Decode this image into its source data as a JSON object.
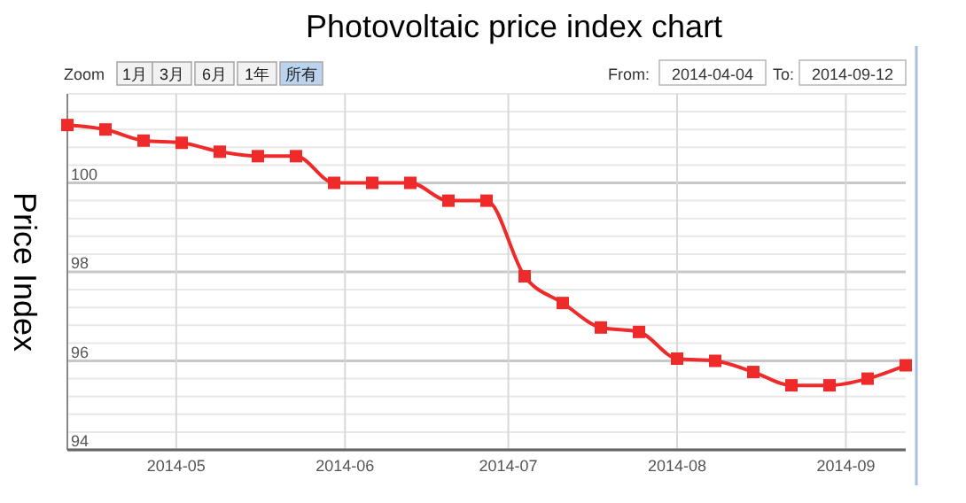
{
  "chart_data": {
    "type": "line",
    "title": "Photovoltaic price index chart",
    "ylabel": "Price Index",
    "x": [
      "2014-04-11",
      "2014-04-18",
      "2014-04-25",
      "2014-05-02",
      "2014-05-09",
      "2014-05-16",
      "2014-05-23",
      "2014-05-30",
      "2014-06-06",
      "2014-06-13",
      "2014-06-20",
      "2014-06-27",
      "2014-07-04",
      "2014-07-11",
      "2014-07-18",
      "2014-07-25",
      "2014-08-01",
      "2014-08-08",
      "2014-08-15",
      "2014-08-22",
      "2014-08-29",
      "2014-09-05",
      "2014-09-12"
    ],
    "series": [
      {
        "color": "#ee2a2a",
        "values": [
          101.3,
          101.2,
          100.95,
          100.9,
          100.7,
          100.6,
          100.6,
          100,
          100,
          100,
          99.6,
          99.6,
          97.9,
          97.3,
          96.75,
          96.65,
          96.05,
          96,
          95.75,
          95.45,
          95.45,
          95.6,
          95.9
        ]
      }
    ],
    "xlim": [
      "2014-04-11",
      "2014-09-12"
    ],
    "xticks": [
      {
        "value": "2014-05-01",
        "label": "2014-05"
      },
      {
        "value": "2014-06-01",
        "label": "2014-06"
      },
      {
        "value": "2014-07-01",
        "label": "2014-07"
      },
      {
        "value": "2014-08-01",
        "label": "2014-08"
      },
      {
        "value": "2014-09-01",
        "label": "2014-09"
      }
    ],
    "ylim": [
      94,
      102
    ],
    "yticks": [
      94,
      {
        "value": 94.4,
        "label": null
      },
      {
        "value": 94.8,
        "label": null
      },
      {
        "value": 95.2,
        "label": null
      },
      {
        "value": 95.6,
        "label": null
      },
      96,
      {
        "value": 96.4,
        "label": null
      },
      {
        "value": 96.8,
        "label": null
      },
      {
        "value": 97.2,
        "label": null
      },
      {
        "value": 97.6,
        "label": null
      },
      98,
      {
        "value": 98.4,
        "label": null
      },
      {
        "value": 98.8,
        "label": null
      },
      {
        "value": 99.2,
        "label": null
      },
      {
        "value": 99.6,
        "label": null
      },
      100,
      {
        "value": 100.4,
        "label": null
      },
      {
        "value": 100.8,
        "label": null
      },
      {
        "value": 101.2,
        "label": null
      },
      {
        "value": 101.6,
        "label": null
      },
      {
        "value": 102,
        "label": null
      }
    ],
    "grid": true,
    "marker": "square",
    "line_style": "solid",
    "annotations": [
      "Zoom",
      "1月",
      "3月",
      "6月",
      "1年",
      "所有",
      "From:",
      "2014-04-04",
      "To:",
      "2014-09-12"
    ]
  }
}
